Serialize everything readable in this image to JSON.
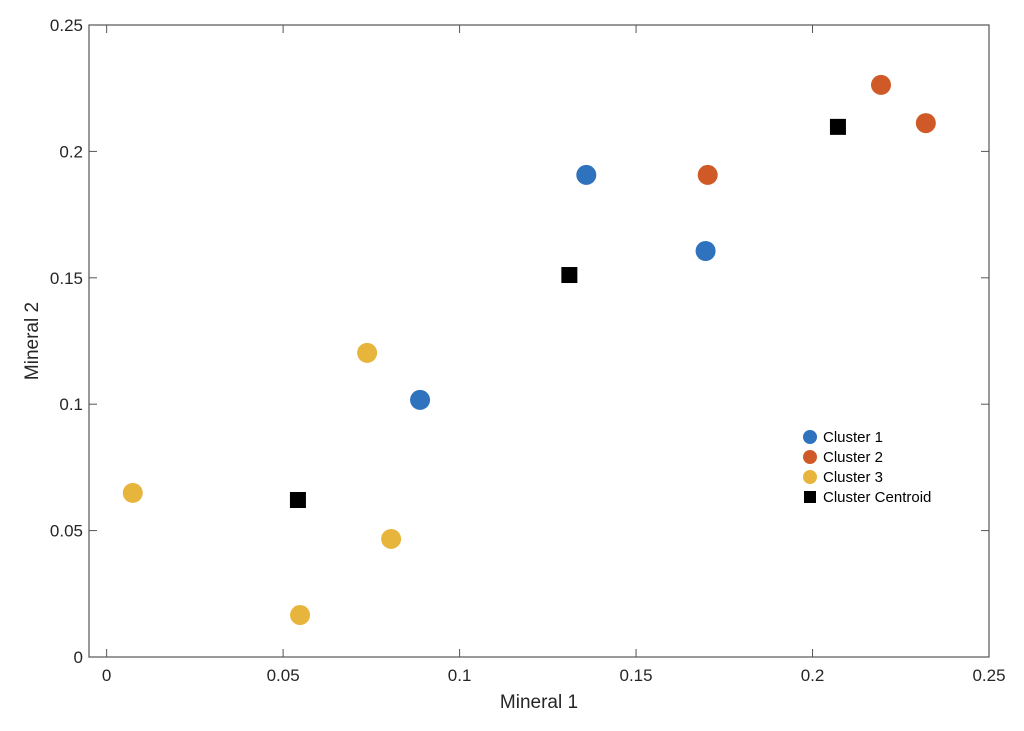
{
  "chart_data": {
    "type": "scatter",
    "title": "",
    "xlabel": "Mineral 1",
    "ylabel": "Mineral 2",
    "xlim": [
      -0.005,
      0.25
    ],
    "ylim": [
      0,
      0.25
    ],
    "xticks": [
      "0",
      "0.05",
      "0.1",
      "0.15",
      "0.2",
      "0.25"
    ],
    "xtick_values": [
      0,
      0.05,
      0.1,
      0.15,
      0.2,
      0.25
    ],
    "yticks": [
      "0",
      "0.05",
      "0.1",
      "0.15",
      "0.2",
      "0.25"
    ],
    "ytick_values": [
      0,
      0.05,
      0.1,
      0.15,
      0.2,
      0.25
    ],
    "grid": false,
    "legend_position": "right",
    "series": [
      {
        "name": "Cluster 1",
        "marker": "circle",
        "color": "#2f72bd",
        "points": [
          [
            0.1359,
            0.1907
          ],
          [
            0.1697,
            0.1606
          ],
          [
            0.0888,
            0.1017
          ]
        ]
      },
      {
        "name": "Cluster 2",
        "marker": "circle",
        "color": "#cf5a27",
        "points": [
          [
            0.2194,
            0.2263
          ],
          [
            0.2321,
            0.2112
          ],
          [
            0.1703,
            0.1907
          ]
        ]
      },
      {
        "name": "Cluster 3",
        "marker": "circle",
        "color": "#e8b53c",
        "points": [
          [
            0.0738,
            0.1203
          ],
          [
            0.0074,
            0.0649
          ],
          [
            0.0806,
            0.0467
          ],
          [
            0.0548,
            0.0166
          ]
        ]
      },
      {
        "name": "Cluster Centroid",
        "marker": "square",
        "color": "#000000",
        "points": [
          [
            0.1311,
            0.1511
          ],
          [
            0.2072,
            0.2097
          ],
          [
            0.0542,
            0.0621
          ]
        ]
      }
    ]
  }
}
